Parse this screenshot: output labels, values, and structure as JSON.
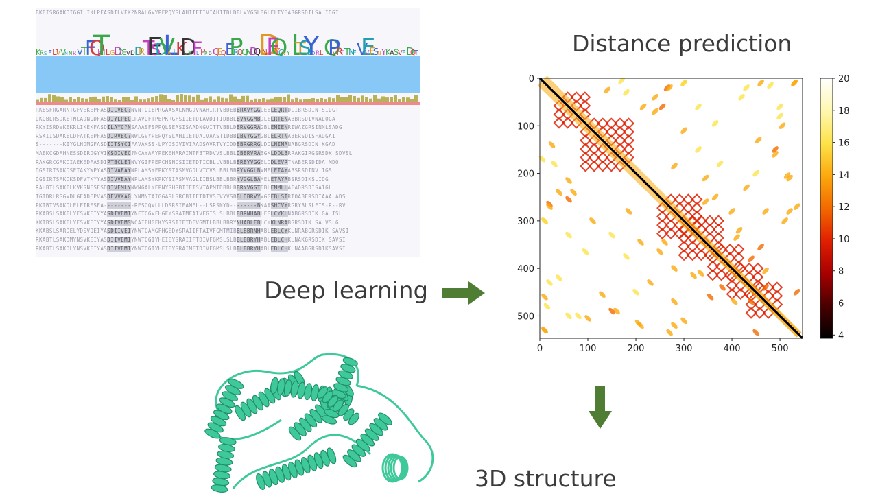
{
  "labels": {
    "distance_prediction": "Distance prediction",
    "deep_learning": "Deep learning",
    "structure_3d": "3D structure"
  },
  "msa": {
    "top_line": "BKEISRGAKDIGGI IKLPFASDILVEK?NRALGVYPEPQYSLAHIIETIVIAHITDLDBLVYGGLBGLELTYEABGRSDILSA IDGI",
    "rows": [
      "RKESFRGARNTGFVEKEPFASDILVEC?NVNTGIEPRGAASALNMGDVNAHIRTVBDEBBRAVYGGLEBLEQRTDLIBRSDIN SIDGT",
      "DKGBLRSDKETNLADNGDFASDIYLPECLRAVGFTPEPKRGFSIIETDIAVDITIDBBLBVYGGMBDLELRTENABBRSDIVNALOGA",
      "RKYISRDVKEKRLIKEKFASDILAYC?NSAAASFSPPQLSEASISAADNGVITTVBBLDBRVGGRAGBLEMIENRIWAZGRSINNLSADG",
      "RSKIISDAKELDFATKEPFASDIRVEC?NWLGVYPEPQYSLAHIIETDAIVAASTIDBBLBVYGGYGBLELRTNABERSDISFADGAI",
      "S-------KIYGLHDMGFASDIITSYCIFAVAKSS-LPYDSDVIVIAADSAVRTVYIDDBBRGRRGLDDLNIMANABGRSDIN KGAD",
      "MAEKCGDAHNESSDIRDGYVIKSDIVEC?NCAYAAYPEKEHARAIMTFBTRDVVSLBBLDBBRVRABGKLDDLBRRAKGIRGSRSDK SDVSL",
      "RAKGRCGAKDIAEKEDFASDIPTBCLE?NVYGIFPEPCHSNCSIIETDTICBLLVBBLBBRBYVGGELDDLEVRTNABERSDIDA MDO",
      "DGSIRTSAKDSETAKYWPYASDIVAEAYNPLAMSYEPKYSTASMVGDLVTCVSLBBLBBRYVGGLBVMELETAYABSRSDINV IGS",
      "DGSIRTSAKDKSDFVTKYYASDIVVEAYNPLAMSYKPKYSIASMVAGLIIBSLBBLBBRYVGGLBAMELETAYABSRSDIKSLIDG",
      "RAHBTLSAKELKVKSNESFSDDIVEMLYNWNGALYEPNYSHSBIIETSVTAPMTDBBLBBRYVGGTEBLEMMLLAFADRSDISAIGL",
      "TGIDRLRSGVDLGEADEPVASDEVVKAGLYNMNTAIGGASLSRCBIIETDIVSFVYVSBBLDBRVYVGGEBLSIRTOABERSDIAAA ADS",
      "PKIBTVSAKDLELETRESFA---------RESCQVLLLDSRSIFAMEL--LSRSNYD--------BKAASHCVYRGRYBLSLEIS-R--RV",
      "RKABSLSAKELYESVKEIYYASDIVEMIYNFTCGVFHGEYSRAIMFAIVFGISLSLBBLBBRNHABLEBLCYKLNABGRSDIK GA ISL",
      "KKTBSLSAKELYESVKEIYYASDIVEMSWCAIFHGEKYSRSIIFTDFVGMTLBBLBBRYNHABLEBLCYKLNRABGRSDIK SA VSLG",
      "KKABSLSARDELYDSVQEIYASDIIVEIYNWTCAMGFHGEDYSRAIIFTAIVFGMTMIBBLBBRNHABLEBLCYKLNRABGRSDIK SAVSI",
      "RKABTLSAKDMYNSVKEIYASDIIVEMIYNWTCGIYHEIEYSRAIIFTDIVFGMSLSLBBLBBRYHABLEBLCHKLNAKGRSDIK SAVSI",
      "RKABTLSAKDLYNSVKEIYASDIIVEMIYNWTCGIYHEIEYSRAIMFTDIVFGMSLSLBBLBBRYHABLEBLCHKLNAABGRSDIKSAVSI"
    ]
  },
  "chart_data": {
    "type": "heatmap",
    "title": "",
    "xlabel": "",
    "ylabel": "",
    "xlim": [
      0,
      547
    ],
    "ylim": [
      547,
      0
    ],
    "x_ticks": [
      0,
      100,
      200,
      300,
      400,
      500
    ],
    "y_ticks": [
      0,
      100,
      200,
      300,
      400,
      500
    ],
    "colorbar": {
      "min": 3.8,
      "max": 20,
      "ticks": [
        4,
        6,
        8,
        10,
        12,
        14,
        16,
        18,
        20
      ],
      "colormap": "afmhot (dark = close, white = far)",
      "stops": [
        "#000000",
        "#4a0000",
        "#a80000",
        "#e02000",
        "#f26a00",
        "#fba90e",
        "#fde34a",
        "#fff7b0",
        "#ffffff"
      ]
    },
    "contact_segments": [
      {
        "from": 0,
        "to": 547,
        "offset": 0,
        "width": 3,
        "value": 4
      },
      {
        "from": 0,
        "to": 540,
        "offset": 10,
        "width": 10,
        "value": 13
      }
    ],
    "lattice_blocks": [
      {
        "start": 40,
        "end": 110,
        "value": 10
      },
      {
        "start": 95,
        "end": 190,
        "value": 10
      },
      {
        "start": 255,
        "end": 330,
        "value": 9
      },
      {
        "start": 300,
        "end": 380,
        "value": 10
      },
      {
        "start": 360,
        "end": 420,
        "value": 10
      },
      {
        "start": 400,
        "end": 460,
        "value": 9
      },
      {
        "start": 440,
        "end": 510,
        "value": 9
      }
    ],
    "offdiag_contacts": [
      {
        "i": 265,
        "j": 20,
        "value": 12
      },
      {
        "i": 255,
        "j": 60,
        "value": 12
      },
      {
        "i": 240,
        "j": 40,
        "value": 14
      },
      {
        "i": 300,
        "j": 10,
        "value": 14
      },
      {
        "i": 170,
        "j": 5,
        "value": 15
      },
      {
        "i": 70,
        "j": 240,
        "value": 14
      },
      {
        "i": 60,
        "j": 215,
        "value": 13
      },
      {
        "i": 20,
        "j": 270,
        "value": 13
      },
      {
        "i": 10,
        "j": 300,
        "value": 15
      },
      {
        "i": 15,
        "j": 480,
        "value": 15
      },
      {
        "i": 10,
        "j": 530,
        "value": 14
      },
      {
        "i": 80,
        "j": 500,
        "value": 15
      },
      {
        "i": 160,
        "j": 490,
        "value": 13
      },
      {
        "i": 210,
        "j": 520,
        "value": 14
      },
      {
        "i": 270,
        "j": 535,
        "value": 13
      },
      {
        "i": 230,
        "j": 430,
        "value": 14
      },
      {
        "i": 210,
        "j": 345,
        "value": 13
      },
      {
        "i": 250,
        "j": 365,
        "value": 14
      },
      {
        "i": 365,
        "j": 95,
        "value": 15
      },
      {
        "i": 345,
        "j": 260,
        "value": 13
      },
      {
        "i": 375,
        "j": 180,
        "value": 15
      },
      {
        "i": 400,
        "j": 280,
        "value": 13
      },
      {
        "i": 410,
        "j": 335,
        "value": 13
      },
      {
        "i": 440,
        "j": 380,
        "value": 12
      },
      {
        "i": 490,
        "j": 150,
        "value": 12
      },
      {
        "i": 505,
        "j": 100,
        "value": 14
      },
      {
        "i": 530,
        "j": 10,
        "value": 13
      },
      {
        "i": 500,
        "j": 60,
        "value": 15
      },
      {
        "i": 520,
        "j": 280,
        "value": 13
      },
      {
        "i": 515,
        "j": 205,
        "value": 14
      },
      {
        "i": 460,
        "j": 355,
        "value": 12
      },
      {
        "i": 470,
        "j": 440,
        "value": 11
      },
      {
        "i": 535,
        "j": 450,
        "value": 12
      },
      {
        "i": 110,
        "j": 300,
        "value": 14
      },
      {
        "i": 150,
        "j": 330,
        "value": 15
      },
      {
        "i": 130,
        "j": 455,
        "value": 14
      },
      {
        "i": 280,
        "j": 470,
        "value": 14
      },
      {
        "i": 320,
        "j": 415,
        "value": 13
      },
      {
        "i": 300,
        "j": 510,
        "value": 14
      },
      {
        "i": 405,
        "j": 470,
        "value": 14
      },
      {
        "i": 40,
        "j": 420,
        "value": 15
      },
      {
        "i": 25,
        "j": 140,
        "value": 14
      },
      {
        "i": 185,
        "j": 280,
        "value": 14
      },
      {
        "i": 180,
        "j": 30,
        "value": 15
      },
      {
        "i": 330,
        "j": 60,
        "value": 15
      },
      {
        "i": 430,
        "j": 20,
        "value": 15
      },
      {
        "i": 460,
        "j": 10,
        "value": 14
      },
      {
        "i": 450,
        "j": 200,
        "value": 15
      }
    ]
  },
  "colors": {
    "label_text": "#3c3c3c",
    "arrow_green": "#4f7d33",
    "protein": "#3fc99a",
    "msa_blue": "#87c8f7"
  },
  "icons": {
    "arrow_right": "right-arrow-icon",
    "arrow_down": "down-arrow-icon"
  }
}
